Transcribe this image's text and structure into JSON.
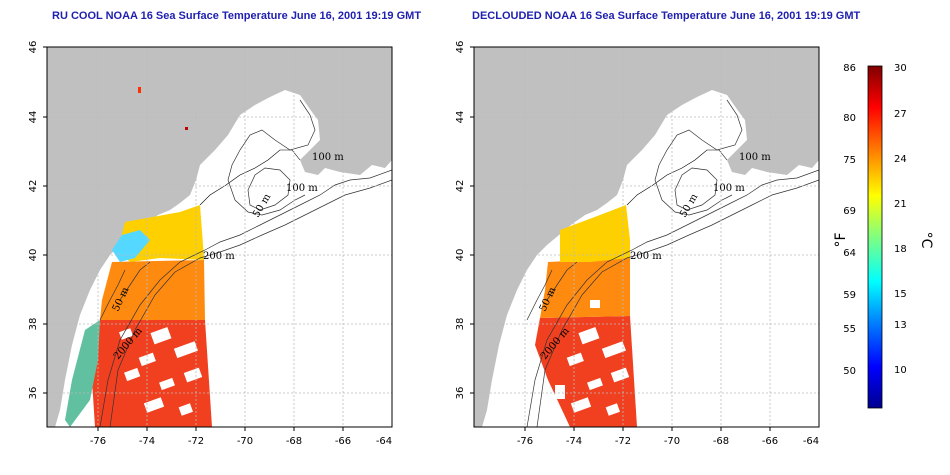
{
  "panels": [
    {
      "title": "RU COOL NOAA 16 Sea Surface Temperature June 16, 2001 19:19 GMT",
      "contour_labels": [
        "100 m",
        "100 m",
        "50 m",
        "200 m",
        "50 m",
        "2000 m"
      ]
    },
    {
      "title": "DECLOUDED NOAA 16 Sea Surface Temperature June 16, 2001 19:19 GMT",
      "contour_labels": [
        "100 m",
        "100 m",
        "50 m",
        "200 m",
        "50 m",
        "2000 m"
      ]
    }
  ],
  "x_ticks": [
    "-76",
    "-74",
    "-72",
    "-70",
    "-68",
    "-66",
    "-64"
  ],
  "y_ticks": [
    "46",
    "44",
    "42",
    "40",
    "38",
    "36"
  ],
  "colorbar": {
    "fahrenheit_ticks": [
      "86",
      "80",
      "75",
      "69",
      "64",
      "59",
      "55",
      "50"
    ],
    "celsius_ticks": [
      "30",
      "27",
      "24",
      "21",
      "18",
      "15",
      "13",
      "10"
    ],
    "fahrenheit_unit": "°F",
    "celsius_unit": "°C",
    "range_c": [
      7,
      30
    ],
    "colors": [
      "#00008f",
      "#0000ff",
      "#0080ff",
      "#00ffff",
      "#80ff80",
      "#ffff00",
      "#ff8000",
      "#ff0000",
      "#800000"
    ]
  },
  "colors": {
    "land": "#c0c0c0",
    "title": "#1f1fb0",
    "grid": "#bbbbbb",
    "warm": "#f04020",
    "mid": "#ffb000",
    "cool": "#00c0ff"
  }
}
